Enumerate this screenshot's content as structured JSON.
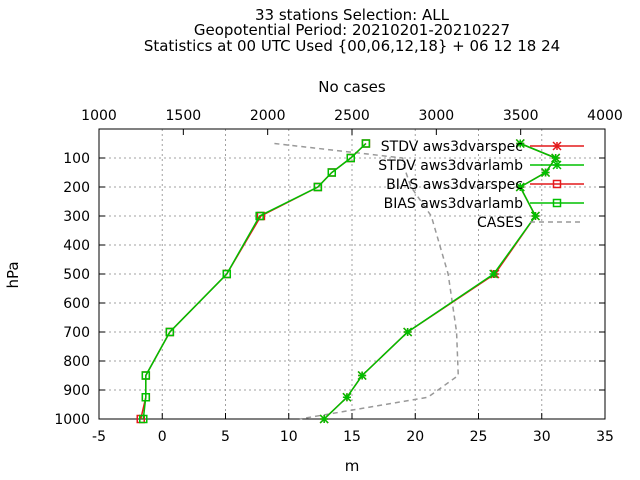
{
  "chart_data": {
    "type": "line",
    "title_lines": [
      "33 stations Selection: ALL",
      "Geopotential  Period: 20210201-20210227",
      "Statistics at 00 UTC  Used {00,06,12,18} + 06 12 18 24"
    ],
    "xlabel": "m",
    "ylabel": "hPa",
    "x2label": "No cases",
    "xlim": [
      -5,
      35
    ],
    "x2lim": [
      1000,
      4000
    ],
    "ylim": [
      1000,
      0
    ],
    "xticks": [
      "-5",
      "0",
      "5",
      "10",
      "15",
      "20",
      "25",
      "30",
      "35"
    ],
    "x2ticks": [
      "1000",
      "1500",
      "2000",
      "2500",
      "3000",
      "3500",
      "4000"
    ],
    "yticks": [
      "100",
      "200",
      "300",
      "400",
      "500",
      "600",
      "700",
      "800",
      "900",
      "1000"
    ],
    "grid": true,
    "legend_position": "top-right",
    "y": [
      50,
      100,
      150,
      200,
      300,
      500,
      700,
      850,
      925,
      1000
    ],
    "series": [
      {
        "name": "STDV aws3dvarspec",
        "color": "#e41a1c",
        "marker": "star",
        "x": [
          28.3,
          31.1,
          30.3,
          28.3,
          29.5,
          26.3,
          19.4,
          15.8,
          14.6,
          12.8
        ]
      },
      {
        "name": "STDV aws3dvarlamb",
        "color": "#00c000",
        "marker": "star",
        "x": [
          28.3,
          31.1,
          30.3,
          28.3,
          29.5,
          26.2,
          19.4,
          15.8,
          14.6,
          12.8
        ]
      },
      {
        "name": "BIAS aws3dvarspec",
        "color": "#e41a1c",
        "marker": "square",
        "x": [
          16.1,
          14.9,
          13.4,
          12.3,
          7.8,
          5.1,
          0.6,
          -1.3,
          -1.3,
          -1.7
        ]
      },
      {
        "name": "BIAS aws3dvarlamb",
        "color": "#00c000",
        "marker": "square",
        "x": [
          16.1,
          14.9,
          13.4,
          12.3,
          7.7,
          5.1,
          0.6,
          -1.3,
          -1.3,
          -1.5
        ]
      }
    ],
    "cases": {
      "name": "CASES",
      "color": "#999999",
      "axis": "x2",
      "y": [
        50,
        100,
        150,
        200,
        300,
        500,
        700,
        850,
        925,
        1000
      ],
      "values": [
        2040,
        2800,
        2820,
        2850,
        2970,
        3070,
        3120,
        3130,
        2950,
        2190
      ]
    }
  }
}
